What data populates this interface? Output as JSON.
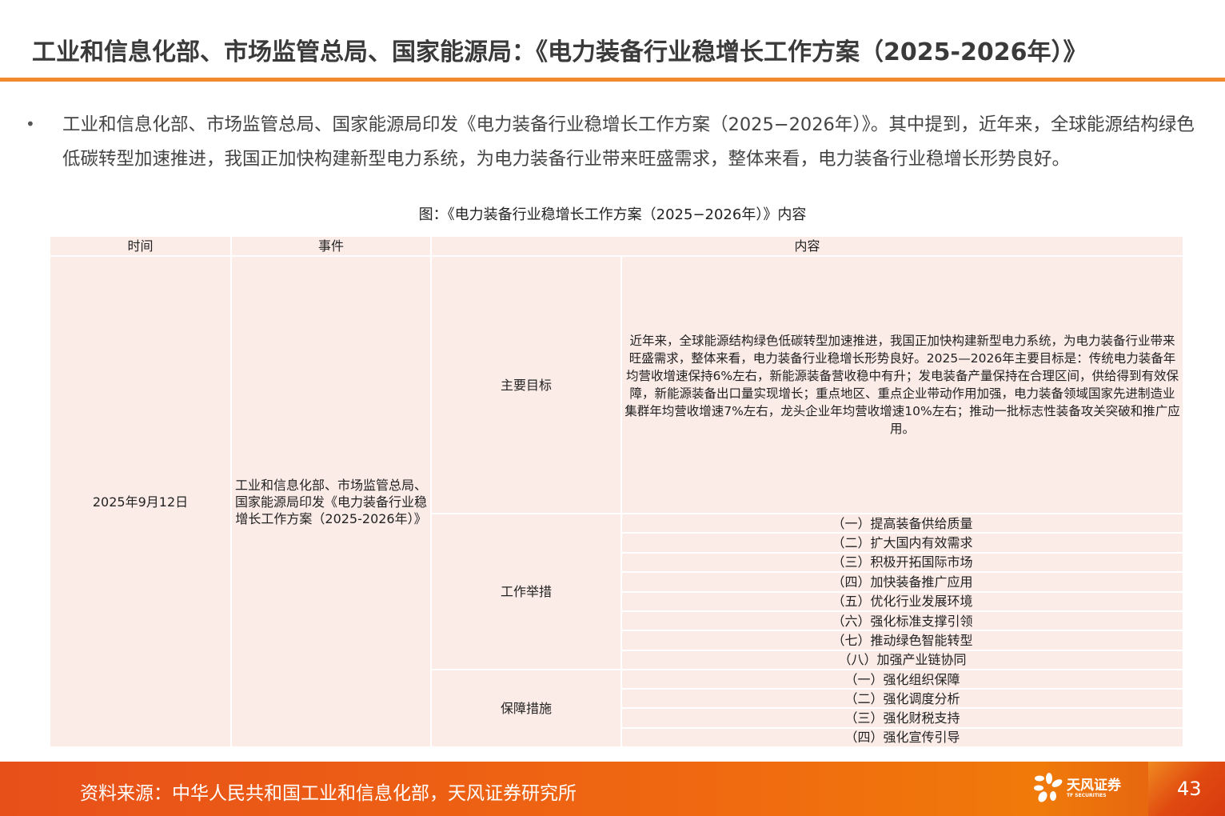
{
  "title": "工业和信息化部、市场监管总局、国家能源局：《电力装备行业稳增长工作方案（2025-2026年）》",
  "paragraph": "工业和信息化部、市场监管总局、国家能源局印发《电力装备行业稳增长工作方案（2025−2026年）》。其中提到，近年来，全球能源结构绿色低碳转型加速推进，我国正加快构建新型电力系统，为电力装备行业带来旺盛需求，整体来看，电力装备行业稳增长形势良好。",
  "bullet": "•",
  "caption": "图：《电力装备行业稳增长工作方案（2025−2026年）》内容",
  "table": {
    "headers": {
      "time": "时间",
      "event": "事件",
      "content": "内容"
    },
    "time": "2025年9月12日",
    "event": "工业和信息化部、市场监管总局、国家能源局印发《电力装备行业稳增长工作方案（2025-2026年）》",
    "goal_label": "主要目标",
    "goal_text": "近年来，全球能源结构绿色低碳转型加速推进，我国正加快构建新型电力系统，为电力装备行业带来旺盛需求，整体来看，电力装备行业稳增长形势良好。2025—2026年主要目标是：传统电力装备年均营收增速保持6%左右，新能源装备营收稳中有升；发电装备产量保持在合理区间，供给得到有效保障，新能源装备出口量实现增长；重点地区、重点企业带动作用加强，电力装备领域国家先进制造业集群年均营收增速7%左右，龙头企业年均营收增速10%左右；推动一批标志性装备攻关突破和推广应用。",
    "measures_label": "工作举措",
    "measures": [
      "（一）提高装备供给质量",
      "（二）扩大国内有效需求",
      "（三）积极开拓国际市场",
      "（四）加快装备推广应用",
      "（五）优化行业发展环境",
      "（六）强化标准支撑引领",
      "（七）推动绿色智能转型",
      "（八）加强产业链协同"
    ],
    "guarantee_label": "保障措施",
    "guarantees": [
      "（一）强化组织保障",
      "（二）强化调度分析",
      "（三）强化财税支持",
      "（四）强化宣传引导"
    ]
  },
  "footer": {
    "source": "资料来源：中华人民共和国工业和信息化部，天风证券研究所",
    "logo_name": "天风证券",
    "logo_en": "TF SECURITIES",
    "page": "43"
  },
  "colors": {
    "accent": "#f08a2c",
    "table_bg": "#fbece8",
    "footer": "#f06a10"
  }
}
